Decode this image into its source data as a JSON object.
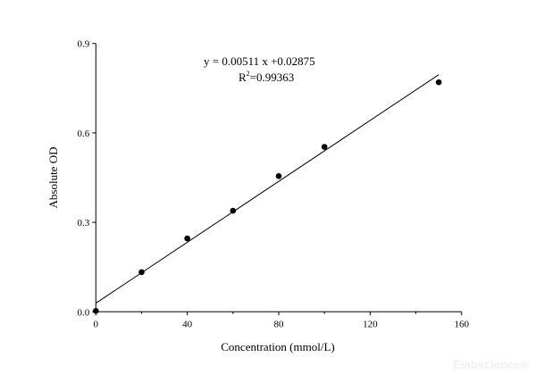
{
  "chart_data": {
    "type": "scatter",
    "xlabel": "Concentration (mmol/L)",
    "ylabel": "Absolute OD",
    "xlim": [
      0,
      160
    ],
    "ylim": [
      0,
      0.9
    ],
    "xticks": [
      "0",
      "40",
      "80",
      "120",
      "160"
    ],
    "yticks": [
      "0.0",
      "0.3",
      "0.6",
      "0.9"
    ],
    "grid": false,
    "points": [
      {
        "x": 0,
        "y": 0.003
      },
      {
        "x": 20,
        "y": 0.133
      },
      {
        "x": 40,
        "y": 0.246
      },
      {
        "x": 60,
        "y": 0.339
      },
      {
        "x": 80,
        "y": 0.455
      },
      {
        "x": 100,
        "y": 0.553
      },
      {
        "x": 150,
        "y": 0.77
      }
    ],
    "fit": {
      "slope": 0.00511,
      "intercept": 0.02875,
      "x_range": [
        0,
        150
      ]
    },
    "annotations": {
      "equation": "y = 0.00511 x +0.02875",
      "r2_prefix": "R",
      "r2_sup": "2",
      "r2_value": "=0.99363"
    }
  },
  "watermark": "Elabscience®"
}
